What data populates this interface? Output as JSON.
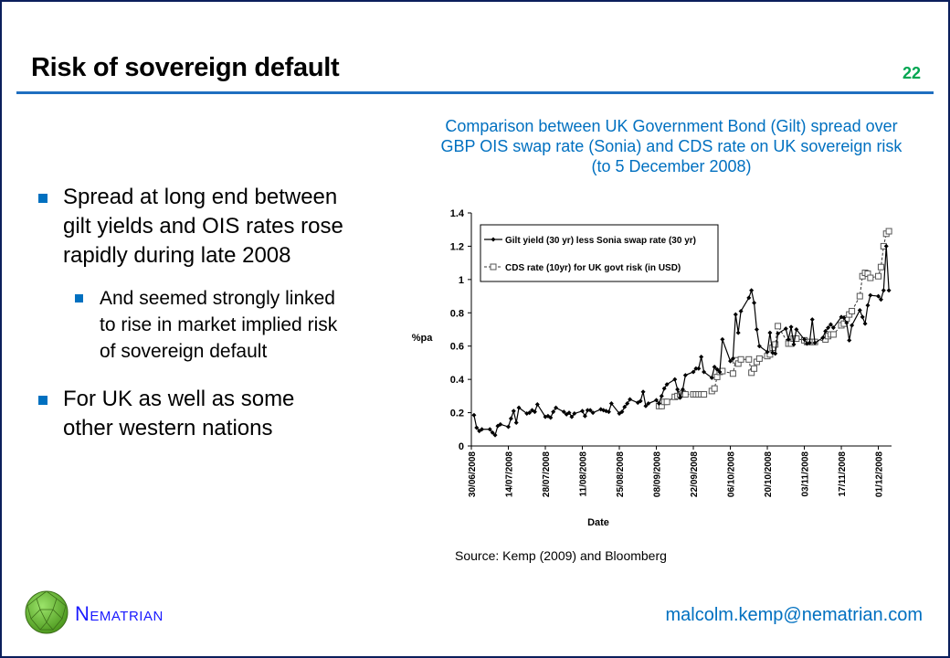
{
  "slide": {
    "title": "Risk of sovereign default",
    "page_number": "22",
    "chart_title": "Comparison between UK Government Bond (Gilt) spread over GBP OIS swap rate (Sonia) and CDS rate on UK sovereign risk (to 5 December 2008)",
    "bullets": [
      {
        "text": "Spread at long end between gilt yields and OIS rates rose rapidly during late 2008",
        "sub": [
          "And seemed strongly linked to rise in market implied risk of sovereign default"
        ]
      },
      {
        "text": "For UK as well as some other western nations",
        "sub": []
      }
    ],
    "source": "Source: Kemp (2009) and Bloomberg",
    "brand": "Nematrian",
    "email": "malcolm.kemp@nematrian.com",
    "colors": {
      "accent": "#0070c0",
      "page_number": "#00a651",
      "frame": "#0b1f5c",
      "brand": "#1a1aff"
    }
  },
  "chart_data": {
    "type": "line",
    "title": "Comparison between UK Government Bond (Gilt) spread over GBP OIS swap rate (Sonia) and CDS rate on UK sovereign risk (to 5 December 2008)",
    "xlabel": "Date",
    "ylabel": "%pa",
    "x_units": "days since 30/06/2008",
    "xlim": [
      0,
      159
    ],
    "ylim": [
      0,
      1.4
    ],
    "y_ticks": [
      0,
      0.2,
      0.4,
      0.6,
      0.8,
      1,
      1.2,
      1.4
    ],
    "y_tick_labels": [
      "0",
      "0.2",
      "0.4",
      "0.6",
      "0.8",
      "1",
      "1.2",
      "1.4"
    ],
    "x_ticks": [
      {
        "day": 0,
        "label": "30/06/2008"
      },
      {
        "day": 14,
        "label": "14/07/2008"
      },
      {
        "day": 28,
        "label": "28/07/2008"
      },
      {
        "day": 42,
        "label": "11/08/2008"
      },
      {
        "day": 56,
        "label": "25/08/2008"
      },
      {
        "day": 70,
        "label": "08/09/2008"
      },
      {
        "day": 84,
        "label": "22/09/2008"
      },
      {
        "day": 98,
        "label": "06/10/2008"
      },
      {
        "day": 112,
        "label": "20/10/2008"
      },
      {
        "day": 126,
        "label": "03/11/2008"
      },
      {
        "day": 140,
        "label": "17/11/2008"
      },
      {
        "day": 154,
        "label": "01/12/2008"
      }
    ],
    "grid": false,
    "legend_position": "top-left",
    "series": [
      {
        "name": "Gilt yield (30 yr) less Sonia swap rate (30 yr)",
        "style": "solid-diamond",
        "points": [
          [
            1,
            0.185
          ],
          [
            2,
            0.11
          ],
          [
            3,
            0.09
          ],
          [
            4,
            0.1
          ],
          [
            7,
            0.1
          ],
          [
            8,
            0.08
          ],
          [
            9,
            0.065
          ],
          [
            10,
            0.12
          ],
          [
            11,
            0.13
          ],
          [
            14,
            0.115
          ],
          [
            15,
            0.165
          ],
          [
            16,
            0.21
          ],
          [
            17,
            0.14
          ],
          [
            18,
            0.23
          ],
          [
            21,
            0.195
          ],
          [
            22,
            0.2
          ],
          [
            23,
            0.215
          ],
          [
            24,
            0.205
          ],
          [
            25,
            0.25
          ],
          [
            28,
            0.175
          ],
          [
            29,
            0.18
          ],
          [
            30,
            0.17
          ],
          [
            31,
            0.205
          ],
          [
            32,
            0.23
          ],
          [
            35,
            0.205
          ],
          [
            36,
            0.19
          ],
          [
            37,
            0.2
          ],
          [
            38,
            0.175
          ],
          [
            39,
            0.195
          ],
          [
            42,
            0.21
          ],
          [
            43,
            0.18
          ],
          [
            44,
            0.215
          ],
          [
            45,
            0.215
          ],
          [
            46,
            0.2
          ],
          [
            49,
            0.22
          ],
          [
            50,
            0.215
          ],
          [
            51,
            0.21
          ],
          [
            52,
            0.205
          ],
          [
            53,
            0.255
          ],
          [
            56,
            0.195
          ],
          [
            57,
            0.205
          ],
          [
            58,
            0.235
          ],
          [
            59,
            0.255
          ],
          [
            60,
            0.28
          ],
          [
            63,
            0.26
          ],
          [
            64,
            0.27
          ],
          [
            65,
            0.325
          ],
          [
            66,
            0.24
          ],
          [
            67,
            0.255
          ],
          [
            70,
            0.275
          ],
          [
            71,
            0.255
          ],
          [
            72,
            0.3
          ],
          [
            73,
            0.345
          ],
          [
            74,
            0.37
          ],
          [
            77,
            0.4
          ],
          [
            78,
            0.34
          ],
          [
            79,
            0.29
          ],
          [
            80,
            0.34
          ],
          [
            81,
            0.425
          ],
          [
            84,
            0.445
          ],
          [
            85,
            0.465
          ],
          [
            86,
            0.465
          ],
          [
            87,
            0.535
          ],
          [
            88,
            0.445
          ],
          [
            91,
            0.41
          ],
          [
            92,
            0.475
          ],
          [
            93,
            0.46
          ],
          [
            94,
            0.445
          ],
          [
            95,
            0.64
          ],
          [
            98,
            0.51
          ],
          [
            99,
            0.525
          ],
          [
            100,
            0.79
          ],
          [
            101,
            0.68
          ],
          [
            102,
            0.81
          ],
          [
            105,
            0.89
          ],
          [
            106,
            0.935
          ],
          [
            107,
            0.86
          ],
          [
            108,
            0.7
          ],
          [
            109,
            0.6
          ],
          [
            112,
            0.565
          ],
          [
            113,
            0.68
          ],
          [
            114,
            0.56
          ],
          [
            115,
            0.555
          ],
          [
            116,
            0.675
          ],
          [
            119,
            0.705
          ],
          [
            120,
            0.64
          ],
          [
            121,
            0.715
          ],
          [
            122,
            0.61
          ],
          [
            123,
            0.7
          ],
          [
            126,
            0.64
          ],
          [
            127,
            0.615
          ],
          [
            128,
            0.62
          ],
          [
            129,
            0.76
          ],
          [
            130,
            0.62
          ],
          [
            133,
            0.65
          ],
          [
            134,
            0.69
          ],
          [
            135,
            0.71
          ],
          [
            136,
            0.73
          ],
          [
            137,
            0.71
          ],
          [
            140,
            0.775
          ],
          [
            141,
            0.77
          ],
          [
            142,
            0.74
          ],
          [
            143,
            0.635
          ],
          [
            144,
            0.725
          ],
          [
            147,
            0.815
          ],
          [
            148,
            0.775
          ],
          [
            149,
            0.735
          ],
          [
            150,
            0.845
          ],
          [
            151,
            0.905
          ],
          [
            154,
            0.9
          ],
          [
            155,
            0.88
          ],
          [
            156,
            0.935
          ],
          [
            157,
            1.2
          ],
          [
            158,
            0.935
          ]
        ]
      },
      {
        "name": "CDS rate (10yr) for UK govt risk (in USD)",
        "style": "dashed-square",
        "points": [
          [
            71,
            0.24
          ],
          [
            72,
            0.24
          ],
          [
            73,
            0.265
          ],
          [
            74,
            0.265
          ],
          [
            77,
            0.295
          ],
          [
            78,
            0.3
          ],
          [
            79,
            0.31
          ],
          [
            80,
            0.315
          ],
          [
            81,
            0.31
          ],
          [
            84,
            0.31
          ],
          [
            85,
            0.31
          ],
          [
            86,
            0.31
          ],
          [
            87,
            0.31
          ],
          [
            88,
            0.31
          ],
          [
            91,
            0.33
          ],
          [
            92,
            0.345
          ],
          [
            93,
            0.415
          ],
          [
            94,
            0.445
          ],
          [
            95,
            0.45
          ],
          [
            99,
            0.435
          ],
          [
            100,
            0.515
          ],
          [
            101,
            0.495
          ],
          [
            102,
            0.52
          ],
          [
            105,
            0.52
          ],
          [
            106,
            0.44
          ],
          [
            107,
            0.465
          ],
          [
            108,
            0.505
          ],
          [
            109,
            0.525
          ],
          [
            112,
            0.54
          ],
          [
            113,
            0.55
          ],
          [
            114,
            0.59
          ],
          [
            115,
            0.61
          ],
          [
            116,
            0.72
          ],
          [
            120,
            0.615
          ],
          [
            121,
            0.615
          ],
          [
            122,
            0.645
          ],
          [
            123,
            0.645
          ],
          [
            126,
            0.635
          ],
          [
            127,
            0.625
          ],
          [
            128,
            0.625
          ],
          [
            129,
            0.625
          ],
          [
            130,
            0.625
          ],
          [
            134,
            0.64
          ],
          [
            135,
            0.66
          ],
          [
            136,
            0.67
          ],
          [
            137,
            0.67
          ],
          [
            140,
            0.725
          ],
          [
            141,
            0.735
          ],
          [
            142,
            0.765
          ],
          [
            143,
            0.79
          ],
          [
            144,
            0.81
          ],
          [
            147,
            0.9
          ],
          [
            148,
            1.02
          ],
          [
            149,
            1.04
          ],
          [
            150,
            1.035
          ],
          [
            151,
            1.01
          ],
          [
            154,
            1.02
          ],
          [
            155,
            1.075
          ],
          [
            156,
            1.2
          ],
          [
            157,
            1.275
          ],
          [
            158,
            1.29
          ]
        ]
      }
    ]
  }
}
